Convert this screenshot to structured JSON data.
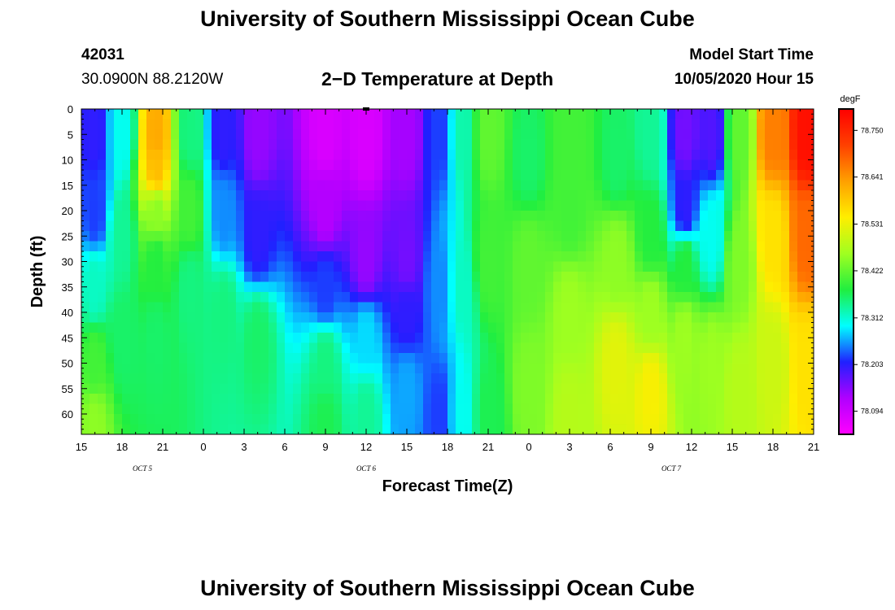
{
  "header": {
    "title": "University of Southern Mississippi Ocean Cube",
    "station_id": "42031",
    "location": "30.0900N 88.2120W",
    "model_start_label": "Model Start Time",
    "model_start_value": "10/05/2020 Hour 15",
    "footer_title": "University of Southern Mississippi Ocean Cube"
  },
  "chart_data": {
    "type": "heatmap",
    "title": "2−D Temperature at Depth",
    "xlabel": "Forecast Time(Z)",
    "ylabel": "Depth (ft)",
    "x_ticks": [
      "15",
      "18",
      "21",
      "0",
      "3",
      "6",
      "9",
      "12",
      "15",
      "18",
      "21",
      "0",
      "3",
      "6",
      "9",
      "12",
      "15",
      "18",
      "21"
    ],
    "x_hours": [
      0,
      3,
      6,
      9,
      12,
      15,
      18,
      21,
      24,
      27,
      30,
      33,
      36,
      39,
      42,
      45,
      48,
      51,
      54
    ],
    "date_labels": [
      {
        "text": "OCT 5",
        "hour": 4.5
      },
      {
        "text": "OCT 6",
        "hour": 21
      },
      {
        "text": "OCT 7",
        "hour": 43.5
      }
    ],
    "y_ticks": [
      0,
      5,
      10,
      15,
      20,
      25,
      30,
      35,
      40,
      45,
      50,
      55,
      60
    ],
    "ylim": [
      0,
      64
    ],
    "xlim": [
      0,
      54
    ],
    "y_inverted": true,
    "colorbar": {
      "units": "degF",
      "labels": [
        "78.750",
        "78.641",
        "78.531",
        "78.422",
        "78.312",
        "78.203",
        "78.094"
      ],
      "min": 78.04,
      "max": 78.8,
      "colors": [
        "#ff00ff",
        "#b000ff",
        "#2020ff",
        "#00ffff",
        "#20ee40",
        "#a0ff20",
        "#ffee00",
        "#ffa000",
        "#ff4000",
        "#ff0000"
      ]
    },
    "marker_hour": 21,
    "field_points": [
      {
        "x": 1,
        "y": 5,
        "v": 78.2
      },
      {
        "x": 1,
        "y": 20,
        "v": 78.22
      },
      {
        "x": 1,
        "y": 35,
        "v": 78.32
      },
      {
        "x": 1,
        "y": 50,
        "v": 78.4
      },
      {
        "x": 1,
        "y": 62,
        "v": 78.45
      },
      {
        "x": 3,
        "y": 5,
        "v": 78.3
      },
      {
        "x": 3,
        "y": 25,
        "v": 78.34
      },
      {
        "x": 3,
        "y": 45,
        "v": 78.36
      },
      {
        "x": 5.5,
        "y": 5,
        "v": 78.62
      },
      {
        "x": 5.5,
        "y": 12,
        "v": 78.6
      },
      {
        "x": 5.5,
        "y": 20,
        "v": 78.45
      },
      {
        "x": 5.5,
        "y": 30,
        "v": 78.38
      },
      {
        "x": 5.5,
        "y": 45,
        "v": 78.36
      },
      {
        "x": 8,
        "y": 5,
        "v": 78.35
      },
      {
        "x": 8,
        "y": 20,
        "v": 78.4
      },
      {
        "x": 8,
        "y": 35,
        "v": 78.35
      },
      {
        "x": 10.5,
        "y": 5,
        "v": 78.2
      },
      {
        "x": 10.5,
        "y": 20,
        "v": 78.25
      },
      {
        "x": 10.5,
        "y": 40,
        "v": 78.35
      },
      {
        "x": 13,
        "y": 5,
        "v": 78.14
      },
      {
        "x": 13,
        "y": 25,
        "v": 78.2
      },
      {
        "x": 13,
        "y": 45,
        "v": 78.36
      },
      {
        "x": 18,
        "y": 5,
        "v": 78.08
      },
      {
        "x": 18,
        "y": 20,
        "v": 78.12
      },
      {
        "x": 18,
        "y": 35,
        "v": 78.22
      },
      {
        "x": 18,
        "y": 50,
        "v": 78.35
      },
      {
        "x": 18,
        "y": 62,
        "v": 78.37
      },
      {
        "x": 21,
        "y": 5,
        "v": 78.08
      },
      {
        "x": 21,
        "y": 30,
        "v": 78.14
      },
      {
        "x": 21,
        "y": 45,
        "v": 78.28
      },
      {
        "x": 21,
        "y": 60,
        "v": 78.34
      },
      {
        "x": 24,
        "y": 5,
        "v": 78.13
      },
      {
        "x": 24,
        "y": 30,
        "v": 78.16
      },
      {
        "x": 24,
        "y": 40,
        "v": 78.2
      },
      {
        "x": 24,
        "y": 55,
        "v": 78.26
      },
      {
        "x": 26.5,
        "y": 5,
        "v": 78.22
      },
      {
        "x": 26.5,
        "y": 35,
        "v": 78.25
      },
      {
        "x": 26.5,
        "y": 60,
        "v": 78.22
      },
      {
        "x": 28,
        "y": 5,
        "v": 78.33
      },
      {
        "x": 28,
        "y": 35,
        "v": 78.32
      },
      {
        "x": 28,
        "y": 60,
        "v": 78.3
      },
      {
        "x": 30,
        "y": 5,
        "v": 78.42
      },
      {
        "x": 30,
        "y": 30,
        "v": 78.4
      },
      {
        "x": 30,
        "y": 60,
        "v": 78.37
      },
      {
        "x": 33,
        "y": 10,
        "v": 78.36
      },
      {
        "x": 33,
        "y": 30,
        "v": 78.42
      },
      {
        "x": 33,
        "y": 55,
        "v": 78.44
      },
      {
        "x": 36,
        "y": 5,
        "v": 78.4
      },
      {
        "x": 36,
        "y": 20,
        "v": 78.4
      },
      {
        "x": 36,
        "y": 40,
        "v": 78.46
      },
      {
        "x": 36,
        "y": 60,
        "v": 78.48
      },
      {
        "x": 39.5,
        "y": 10,
        "v": 78.36
      },
      {
        "x": 39.5,
        "y": 30,
        "v": 78.45
      },
      {
        "x": 39.5,
        "y": 50,
        "v": 78.52
      },
      {
        "x": 42,
        "y": 5,
        "v": 78.34
      },
      {
        "x": 42,
        "y": 25,
        "v": 78.38
      },
      {
        "x": 42,
        "y": 40,
        "v": 78.46
      },
      {
        "x": 42,
        "y": 55,
        "v": 78.54
      },
      {
        "x": 44.5,
        "y": 5,
        "v": 78.16
      },
      {
        "x": 44.5,
        "y": 20,
        "v": 78.2
      },
      {
        "x": 44.5,
        "y": 30,
        "v": 78.38
      },
      {
        "x": 44.5,
        "y": 45,
        "v": 78.46
      },
      {
        "x": 46.5,
        "y": 5,
        "v": 78.18
      },
      {
        "x": 46.5,
        "y": 25,
        "v": 78.3
      },
      {
        "x": 46.5,
        "y": 50,
        "v": 78.46
      },
      {
        "x": 48.5,
        "y": 5,
        "v": 78.42
      },
      {
        "x": 48.5,
        "y": 30,
        "v": 78.44
      },
      {
        "x": 48.5,
        "y": 55,
        "v": 78.48
      },
      {
        "x": 51,
        "y": 5,
        "v": 78.66
      },
      {
        "x": 51,
        "y": 25,
        "v": 78.56
      },
      {
        "x": 51,
        "y": 50,
        "v": 78.5
      },
      {
        "x": 53.5,
        "y": 5,
        "v": 78.78
      },
      {
        "x": 53.5,
        "y": 25,
        "v": 78.68
      },
      {
        "x": 53.5,
        "y": 50,
        "v": 78.56
      }
    ]
  }
}
